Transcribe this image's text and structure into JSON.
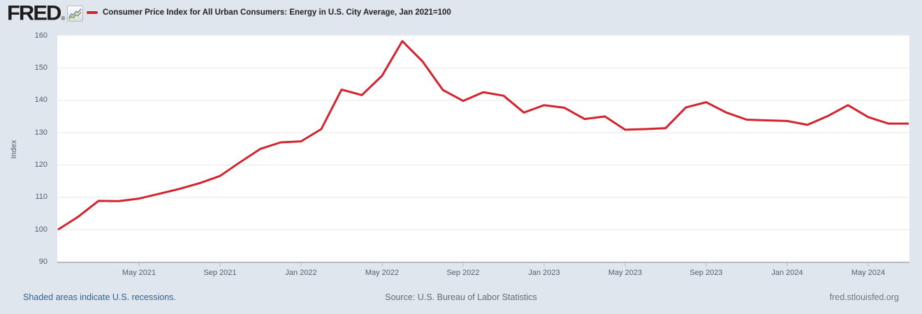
{
  "header": {
    "logo_text": "FRED",
    "logo_registered": "®",
    "series_title": "Consumer Price Index for All Urban Consumers: Energy in U.S. City Average, Jan 2021=100"
  },
  "colors": {
    "background": "#dfe6ed",
    "plot_background": "#ffffff",
    "line_red": "#d2232e",
    "gridline": "#e7e7e7",
    "axis_line": "#878c92",
    "tick_mark": "#b6c0ca",
    "axis_text": "#55606b"
  },
  "y_axis": {
    "label": "Index",
    "ticks": [
      160,
      150,
      140,
      130,
      120,
      110,
      100,
      90
    ]
  },
  "x_axis": {
    "ticks": [
      {
        "label": "May 2021",
        "month_index": 4
      },
      {
        "label": "Sep 2021",
        "month_index": 8
      },
      {
        "label": "Jan 2022",
        "month_index": 12
      },
      {
        "label": "May 2022",
        "month_index": 16
      },
      {
        "label": "Sep 2022",
        "month_index": 20
      },
      {
        "label": "Jan 2023",
        "month_index": 24
      },
      {
        "label": "May 2023",
        "month_index": 28
      },
      {
        "label": "Sep 2023",
        "month_index": 32
      },
      {
        "label": "Jan 2024",
        "month_index": 36
      },
      {
        "label": "May 2024",
        "month_index": 40
      }
    ]
  },
  "chart_data": {
    "type": "line",
    "title": "Consumer Price Index for All Urban Consumers: Energy in U.S. City Average, Jan 2021=100",
    "xlabel": "",
    "ylabel": "Index",
    "ylim": [
      90,
      160
    ],
    "grid": "horizontal",
    "legend_position": "top-left",
    "line_color": "#d2232e",
    "x": [
      "Jan 2021",
      "Feb 2021",
      "Mar 2021",
      "Apr 2021",
      "May 2021",
      "Jun 2021",
      "Jul 2021",
      "Aug 2021",
      "Sep 2021",
      "Oct 2021",
      "Nov 2021",
      "Dec 2021",
      "Jan 2022",
      "Feb 2022",
      "Mar 2022",
      "Apr 2022",
      "May 2022",
      "Jun 2022",
      "Jul 2022",
      "Aug 2022",
      "Sep 2022",
      "Oct 2022",
      "Nov 2022",
      "Dec 2022",
      "Jan 2023",
      "Feb 2023",
      "Mar 2023",
      "Apr 2023",
      "May 2023",
      "Jun 2023",
      "Jul 2023",
      "Aug 2023",
      "Sep 2023",
      "Oct 2023",
      "Nov 2023",
      "Dec 2023",
      "Jan 2024",
      "Feb 2024",
      "Mar 2024",
      "Apr 2024",
      "May 2024",
      "Jun 2024",
      "Jul 2024"
    ],
    "values": [
      100.0,
      104.0,
      108.9,
      108.8,
      109.6,
      111.1,
      112.6,
      114.4,
      116.6,
      120.9,
      125.0,
      127.0,
      127.3,
      131.1,
      143.3,
      141.6,
      147.6,
      158.3,
      152.0,
      143.2,
      139.8,
      142.5,
      141.4,
      136.2,
      138.5,
      137.7,
      134.2,
      135.0,
      130.9,
      131.1,
      131.4,
      137.8,
      139.4,
      136.2,
      134.0,
      133.8,
      133.6,
      132.4,
      135.1,
      138.5,
      134.8,
      132.8,
      132.8
    ]
  },
  "footer": {
    "left": "Shaded areas indicate U.S. recessions.",
    "center": "Source: U.S. Bureau of Labor Statistics",
    "right": "fred.stlouisfed.org"
  }
}
